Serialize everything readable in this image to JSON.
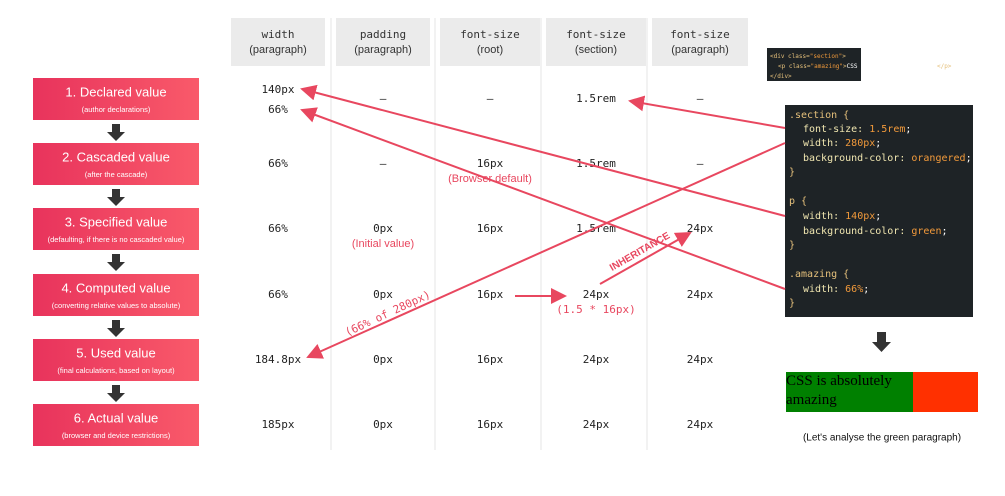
{
  "stages": [
    {
      "title": "1. Declared value",
      "subtitle": "(author declarations)"
    },
    {
      "title": "2. Cascaded value",
      "subtitle": "(after the cascade)"
    },
    {
      "title": "3. Specified value",
      "subtitle": "(defaulting, if there is no cascaded value)"
    },
    {
      "title": "4. Computed value",
      "subtitle": "(converting relative values to absolute)"
    },
    {
      "title": "5. Used value",
      "subtitle": "(final calculations, based on layout)"
    },
    {
      "title": "6. Actual value",
      "subtitle": "(browser and device restrictions)"
    }
  ],
  "columns": [
    {
      "property": "width",
      "scope": "(paragraph)"
    },
    {
      "property": "padding",
      "scope": "(paragraph)"
    },
    {
      "property": "font-size",
      "scope": "(root)"
    },
    {
      "property": "font-size",
      "scope": "(section)"
    },
    {
      "property": "font-size",
      "scope": "(paragraph)"
    }
  ],
  "rows": [
    [
      [
        "140px",
        "66%"
      ],
      "–",
      "–",
      "1.5rem",
      "–"
    ],
    [
      "66%",
      "–",
      "16px",
      "1.5rem",
      "–"
    ],
    [
      "66%",
      "0px",
      "16px",
      "1.5rem",
      "24px"
    ],
    [
      "66%",
      "0px",
      "16px",
      "24px",
      "24px"
    ],
    [
      "184.8px",
      "0px",
      "16px",
      "24px",
      "24px"
    ],
    [
      "185px",
      "0px",
      "16px",
      "24px",
      "24px"
    ]
  ],
  "notes": {
    "browser_default": "(Browser default)",
    "initial_value": "(Initial value)",
    "calc": "(1.5 * 16px)",
    "percent": "(66% of 280px)",
    "inheritance": "INHERITANCE"
  },
  "html_snippet": [
    [
      "<div class=",
      "\"section\"",
      ">"
    ],
    [
      "<p class=",
      "\"amazing\"",
      ">",
      "CSS is absolutely amazing",
      "</p>"
    ],
    [
      "</div>"
    ]
  ],
  "css_code": [
    [
      ".section {"
    ],
    [
      "font-size: ",
      "1.5rem",
      ";"
    ],
    [
      "width: ",
      "280px",
      ";"
    ],
    [
      "background-color: ",
      "orangered",
      ";"
    ],
    [
      "}"
    ],
    [
      "p {"
    ],
    [
      "width: ",
      "140px",
      ";"
    ],
    [
      "background-color: ",
      "green",
      ";"
    ],
    [
      "}"
    ],
    [
      ".amazing {"
    ],
    [
      "width: ",
      "66%",
      ";"
    ],
    [
      "}"
    ]
  ],
  "result": {
    "text": "CSS is absolutely amazing",
    "caption": "(Let's analyse the green paragraph)"
  }
}
